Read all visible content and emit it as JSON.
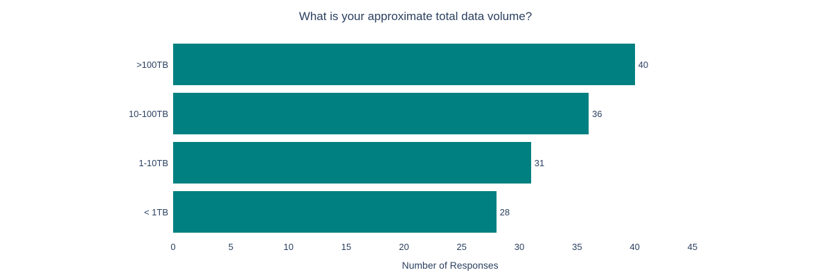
{
  "figure": {
    "background_color": "#ffffff",
    "text_color": "#2a3f5f",
    "bar_color": "#008080"
  },
  "chart_data": {
    "type": "bar",
    "orientation": "horizontal",
    "title": "What is your approximate total data volume?",
    "categories": [
      ">100TB",
      "10-100TB",
      "1-10TB",
      "< 1TB"
    ],
    "values": [
      40,
      36,
      31,
      28
    ],
    "value_labels": [
      "40",
      "36",
      "31",
      "28"
    ],
    "xlabel": "Number of Responses",
    "ylabel": "",
    "xlim": [
      0,
      48
    ],
    "xticks": [
      0,
      5,
      10,
      15,
      20,
      25,
      30,
      35,
      40,
      45
    ],
    "grid": false,
    "legend": false
  }
}
